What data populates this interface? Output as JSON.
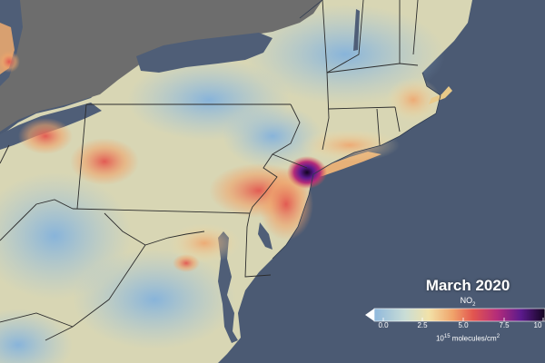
{
  "legend": {
    "title": "March 2020",
    "variable": "NO",
    "variable_sub": "2",
    "units_base": "10",
    "units_exp": "15",
    "units_rest": " molecules/cm",
    "units_sup": "2",
    "ticks": [
      "0.0",
      "2.5",
      "5.0",
      "7.5",
      "10"
    ],
    "tick_values": [
      0,
      2.5,
      5.0,
      7.5,
      10
    ],
    "range": [
      0,
      10
    ],
    "colormap": [
      "#8fb8dc",
      "#c9ddd6",
      "#f2e2a8",
      "#f0a36a",
      "#e2554f",
      "#b42c7a",
      "#5b1a8c",
      "#12051f"
    ]
  },
  "colors": {
    "ocean": "#4b5a73",
    "canada_land": "#6d6d6d",
    "lake": "#4f5e77",
    "land_low": "#8fb8dc",
    "land_mid": "#f2e2a8",
    "hotspot": "#e2554f",
    "hotspot_peak": "#5b1a8c",
    "border": "#2c2c2c"
  }
}
